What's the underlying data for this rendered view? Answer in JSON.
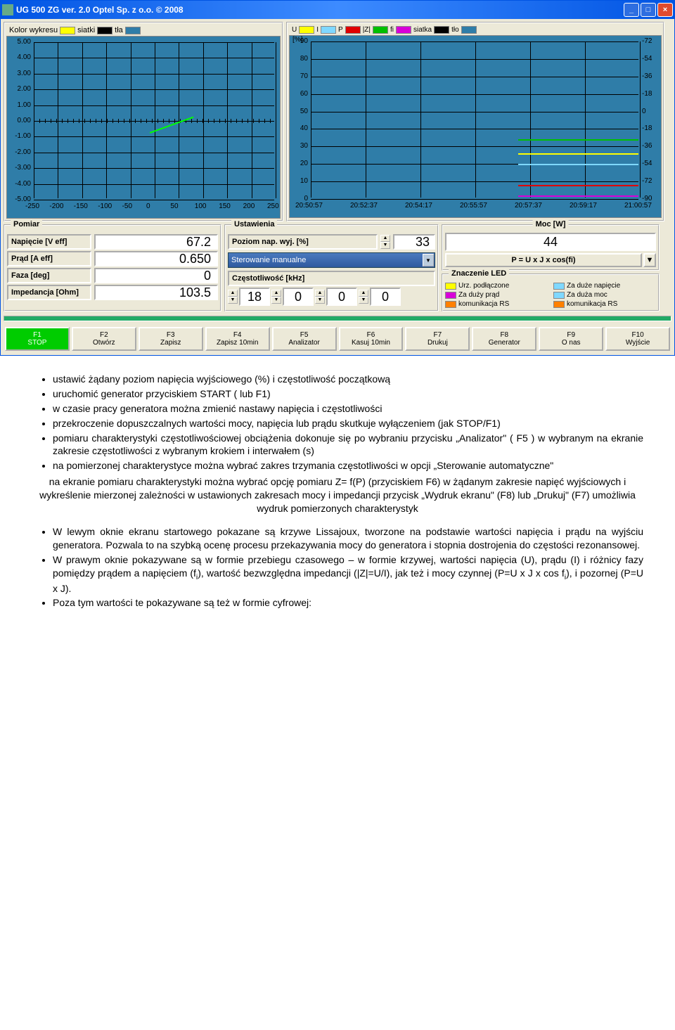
{
  "window": {
    "title": "UG 500 ZG ver. 2.0  Optel Sp. z o.o. © 2008"
  },
  "left_chart": {
    "legend": {
      "kolor": "Kolor wykresu",
      "kolor_col": "#ffff00",
      "siatki": "siatki",
      "siatki_col": "#000000",
      "tla": "tła",
      "tla_col": "#2f7da8"
    },
    "bg": "#2f7da8",
    "xlim": [
      -250,
      250
    ],
    "ylim": [
      -5,
      5
    ],
    "xticks": [
      -250,
      -200,
      -150,
      -100,
      -50,
      0,
      50,
      100,
      150,
      200,
      250
    ],
    "yticks": [
      5.0,
      4.0,
      3.0,
      2.0,
      1.0,
      0.0,
      -1.0,
      -2.0,
      -3.0,
      -4.0,
      -5.0
    ],
    "line": {
      "x1": -10,
      "y1": -0.7,
      "x2": 80,
      "y2": 0.3,
      "color": "#00ff00"
    }
  },
  "right_chart": {
    "legend": {
      "U": "U",
      "U_col": "#ffff00",
      "I": "I",
      "I_col": "#7fd8ff",
      "P": "P",
      "P_col": "#e00000",
      "Z": "|Z|",
      "Z_col": "#00c000",
      "fi": "fi",
      "fi_col": "#d800d8",
      "siatka": "siatka",
      "siatka_col": "#000000",
      "tlo": "tło",
      "tlo_col": "#2f7da8"
    },
    "bg": "#2f7da8",
    "ylabel": "[%]",
    "yleft": [
      90,
      80,
      70,
      60,
      50,
      40,
      30,
      20,
      10,
      0
    ],
    "yright": [
      -72,
      -54,
      -36,
      -18,
      0,
      -18,
      -36,
      -54,
      -72,
      -90
    ],
    "xticks": [
      "20:50:57",
      "20:52:37",
      "20:54:17",
      "20:55:57",
      "20:57:37",
      "20:59:17",
      "21:00:57"
    ],
    "lines": {
      "U": {
        "y": 26,
        "color": "#ffff00",
        "x0": 0.63
      },
      "I": {
        "y": 20,
        "color": "#7fd8ff",
        "x0": 0.63
      },
      "P": {
        "y": 8,
        "color": "#e00000",
        "x0": 0.63
      },
      "Z": {
        "y": 34,
        "color": "#00c000",
        "x0": 0.63
      },
      "fi": {
        "y": 2,
        "color": "#d800d8",
        "x0": 0.63
      }
    }
  },
  "pomiar": {
    "title": "Pomiar",
    "rows": [
      {
        "label": "Napięcie [V eff]",
        "value": "67.2"
      },
      {
        "label": "Prąd [A eff]",
        "value": "0.650"
      },
      {
        "label": "Faza [deg]",
        "value": "0"
      },
      {
        "label": "Impedancja [Ohm]",
        "value": "103.5"
      }
    ]
  },
  "ustaw": {
    "title": "Ustawienia",
    "poziom_lbl": "Poziom nap. wyj. [%]",
    "poziom_val": "33",
    "combo": "Sterowanie manualne",
    "freq_lbl": "Częstotliwość [kHz]",
    "freq": [
      "18",
      "0",
      "0",
      "0"
    ]
  },
  "moc": {
    "title": "Moc [W]",
    "value": "44",
    "formula": "P = U x J x cos(fi)"
  },
  "led": {
    "title": "Znaczenie LED",
    "items": [
      {
        "col": "#ffff00",
        "txt": "Urz. podłączone"
      },
      {
        "col": "#7fd8ff",
        "txt": "Za duże napięcie"
      },
      {
        "col": "#d800d8",
        "txt": "Za duży prąd"
      },
      {
        "col": "#7fd8ff",
        "txt": "Za duża moc"
      },
      {
        "col": "#ff8000",
        "txt": "komunikacja RS"
      },
      {
        "col": "#ff8000",
        "txt": "komunikacja RS"
      }
    ]
  },
  "fkeys": [
    {
      "k": "F1",
      "lbl": "STOP",
      "active": true
    },
    {
      "k": "F2",
      "lbl": "Otwórz"
    },
    {
      "k": "F3",
      "lbl": "Zapisz"
    },
    {
      "k": "F4",
      "lbl": "Zapisz 10min"
    },
    {
      "k": "F5",
      "lbl": "Analizator"
    },
    {
      "k": "F6",
      "lbl": "Kasuj 10min"
    },
    {
      "k": "F7",
      "lbl": "Drukuj"
    },
    {
      "k": "F8",
      "lbl": "Generator"
    },
    {
      "k": "F9",
      "lbl": "O nas"
    },
    {
      "k": "F10",
      "lbl": "Wyjście"
    }
  ],
  "doc": {
    "b1": "ustawić żądany poziom napięcia wyjściowego (%) i częstotliwość początkową",
    "b2": "uruchomić generator przyciskiem START ( lub F1)",
    "b3": "w czasie pracy generatora można zmienić nastawy napięcia i częstotliwości",
    "b4": "przekroczenie dopuszczalnych wartości mocy, napięcia lub prądu skutkuje wyłączeniem (jak STOP/F1)",
    "b5": "pomiaru charakterystyki częstotliwościowej obciążenia dokonuje się po wybraniu przycisku „Analizator\" ( F5 ) w wybranym na ekranie zakresie częstotliwości z wybranym krokiem i interwałem (s)",
    "b6": "na pomierzonej charakterystyce można wybrać zakres trzymania częstotliwości w opcji „Sterowanie automatyczne\"",
    "p1": "na ekranie pomiaru charakterystyki można wybrać opcję pomiaru Z= f(P) (przyciskiem F6) w żądanym zakresie napięć wyjściowych i wykreślenie mierzonej zależności w ustawionych zakresach mocy i impedancji przycisk „Wydruk ekranu\" (F8) lub „Drukuj\" (F7) umożliwia wydruk pomierzonych charakterystyk",
    "b7": "W lewym oknie ekranu startowego pokazane są krzywe Lissajoux, tworzone na podstawie wartości napięcia i prądu na wyjściu generatora. Pozwala to na szybką ocenę procesu przekazywania mocy do generatora i stopnia dostrojenia do częstości rezonansowej.",
    "b8a": "W prawym oknie pokazywane są w formie przebiegu czasowego – w formie krzywej, wartości napięcia (U), prądu (I) i różnicy fazy pomiędzy prądem a napięciem (f",
    "b8b": "), wartość bezwzględna impedancji (|Z|=U/I), jak też i mocy czynnej (P=U x J x cos f",
    "b8c": "), i pozornej (P=U x J).",
    "b9": "Poza tym wartości te pokazywane są też w formie cyfrowej:"
  }
}
